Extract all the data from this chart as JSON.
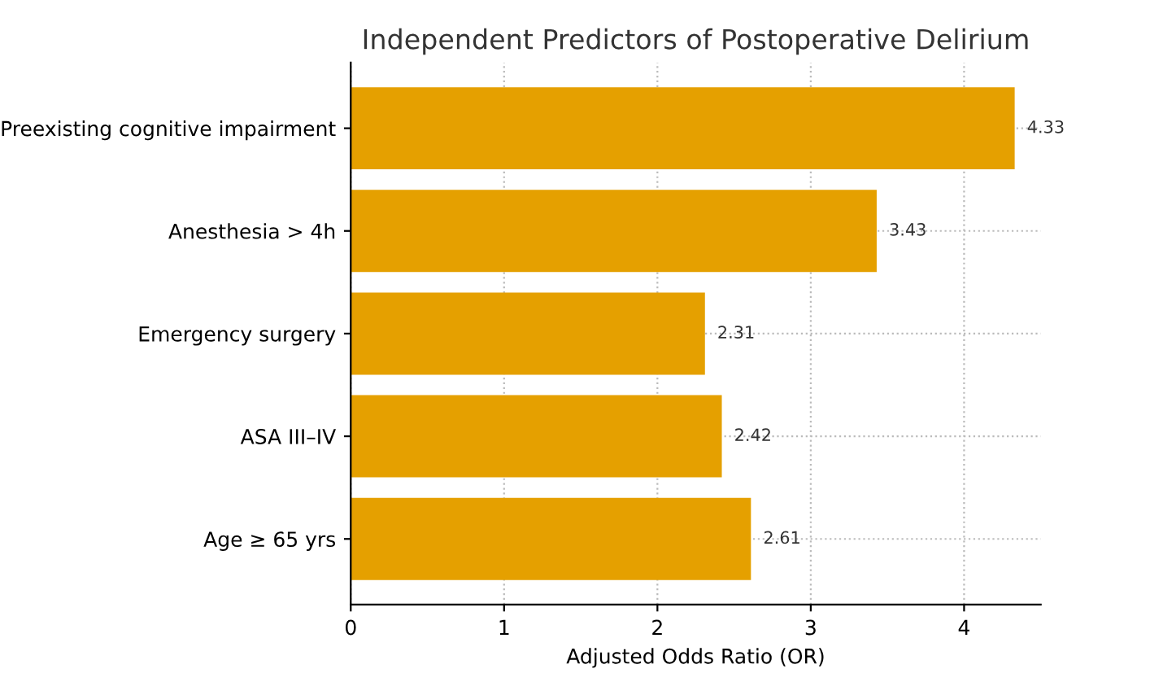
{
  "chart_data": {
    "type": "bar",
    "orientation": "horizontal",
    "title": "Independent Predictors of Postoperative Delirium",
    "xlabel": "Adjusted Odds Ratio (OR)",
    "categories": [
      "Preexisting cognitive impairment",
      "Anesthesia > 4h",
      "Emergency surgery",
      "ASA III–IV",
      "Age ≥ 65 yrs"
    ],
    "values": [
      4.33,
      3.43,
      2.31,
      2.42,
      2.61
    ],
    "color": "#e5a000",
    "data_labels": true,
    "xlim": [
      0,
      4.5
    ],
    "xticks": [
      0,
      1,
      2,
      3,
      4
    ],
    "grid": true
  }
}
